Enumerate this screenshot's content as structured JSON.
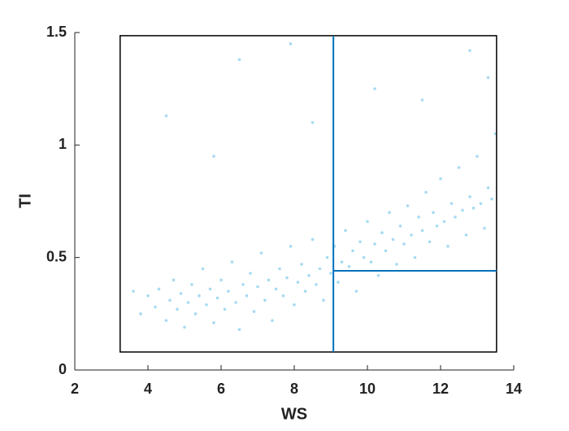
{
  "chart_data": {
    "type": "scatter",
    "x_label": "WS",
    "y_label": "TI",
    "xlim": [
      2,
      14
    ],
    "ylim": [
      0,
      1.5
    ],
    "xticks": [
      2,
      4,
      6,
      8,
      10,
      12,
      14
    ],
    "yticks": [
      0,
      0.5,
      1,
      1.5
    ],
    "color": "#4db8e8",
    "x": [
      4.0,
      4.2,
      4.3,
      4.5,
      4.6,
      4.7,
      4.8,
      4.9,
      5.0,
      5.1,
      5.2,
      5.3,
      5.4,
      5.5,
      5.6,
      5.7,
      5.8,
      5.9,
      6.0,
      6.1,
      6.2,
      6.3,
      6.4,
      6.5,
      6.6,
      6.7,
      6.8,
      6.9,
      7.0,
      7.1,
      7.2,
      7.3,
      7.4,
      7.5,
      7.6,
      7.7,
      7.8,
      7.9,
      8.0,
      8.1,
      8.2,
      8.3,
      8.4,
      8.5,
      8.6,
      8.7,
      8.8,
      8.9,
      9.0,
      9.1,
      9.2,
      9.3,
      9.4,
      9.5,
      9.6,
      9.7,
      9.8,
      9.9,
      10.0,
      10.1,
      10.2,
      10.3,
      10.4,
      10.5,
      10.6,
      10.7,
      10.8,
      10.9,
      11.0,
      11.1,
      11.2,
      11.3,
      11.4,
      11.5,
      11.6,
      11.7,
      11.8,
      11.9,
      12.0,
      12.1,
      12.2,
      12.3,
      12.4,
      12.5,
      12.6,
      12.7,
      12.8,
      12.9,
      13.0,
      13.1,
      13.2,
      13.3,
      13.4,
      13.5,
      4.5,
      6.5,
      7.9,
      10.2,
      12.8,
      5.8,
      8.5,
      11.5,
      13.3,
      3.6,
      3.8
    ],
    "y": [
      0.33,
      0.28,
      0.36,
      0.22,
      0.31,
      0.4,
      0.27,
      0.34,
      0.19,
      0.3,
      0.38,
      0.25,
      0.33,
      0.45,
      0.29,
      0.36,
      0.21,
      0.32,
      0.4,
      0.27,
      0.35,
      0.48,
      0.3,
      0.18,
      0.38,
      0.33,
      0.43,
      0.26,
      0.37,
      0.52,
      0.31,
      0.4,
      0.22,
      0.36,
      0.45,
      0.33,
      0.41,
      0.55,
      0.29,
      0.39,
      0.47,
      0.35,
      0.42,
      0.58,
      0.38,
      0.45,
      0.31,
      0.5,
      0.43,
      0.55,
      0.39,
      0.48,
      0.62,
      0.46,
      0.53,
      0.35,
      0.57,
      0.5,
      0.66,
      0.48,
      0.56,
      0.42,
      0.61,
      0.53,
      0.7,
      0.58,
      0.47,
      0.64,
      0.56,
      0.73,
      0.6,
      0.5,
      0.68,
      0.62,
      0.79,
      0.57,
      0.7,
      0.64,
      0.85,
      0.66,
      0.55,
      0.74,
      0.68,
      0.9,
      0.71,
      0.6,
      0.77,
      0.72,
      0.95,
      0.74,
      0.63,
      0.81,
      0.76,
      1.05,
      1.13,
      1.38,
      1.45,
      1.25,
      1.42,
      0.95,
      1.1,
      1.2,
      1.3,
      0.35,
      0.25
    ],
    "box": {
      "x": [
        3.24,
        13.53
      ],
      "y": [
        0.08,
        1.486
      ],
      "color": "#000000"
    },
    "split": {
      "x": 9.07,
      "y": 0.441,
      "color": "#0072bd"
    }
  }
}
